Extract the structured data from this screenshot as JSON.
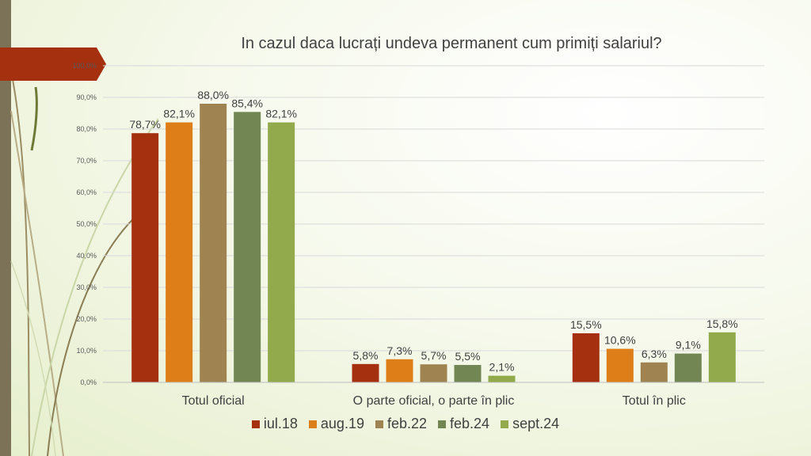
{
  "chart_data": {
    "type": "bar",
    "title": "In cazul daca lucrați undeva permanent cum primiți salariul?",
    "categories": [
      "Totul oficial",
      "O parte oficial, o parte în plic",
      "Totul în plic"
    ],
    "series": [
      {
        "name": "iul.18",
        "color": "#a5300f",
        "values": [
          78.7,
          5.8,
          15.5
        ],
        "labels": [
          "78,7%",
          "5,8%",
          "15,5%"
        ]
      },
      {
        "name": "aug.19",
        "color": "#de7e18",
        "values": [
          82.1,
          7.3,
          10.6
        ],
        "labels": [
          "82,1%",
          "7,3%",
          "10,6%"
        ]
      },
      {
        "name": "feb.22",
        "color": "#9f8351",
        "values": [
          88.0,
          5.7,
          6.3
        ],
        "labels": [
          "88,0%",
          "5,7%",
          "6,3%"
        ]
      },
      {
        "name": "feb.24",
        "color": "#728653",
        "values": [
          85.4,
          5.5,
          9.1
        ],
        "labels": [
          "85,4%",
          "5,5%",
          "9,1%"
        ]
      },
      {
        "name": "sept.24",
        "color": "#92aa4c",
        "values": [
          82.1,
          2.1,
          15.8
        ],
        "labels": [
          "82,1%",
          "2,1%",
          "15,8%"
        ]
      }
    ],
    "ylim": [
      0,
      100
    ],
    "yticks": [
      "0,0%",
      "10,0%",
      "20,0%",
      "30,0%",
      "40,0%",
      "50,0%",
      "60,0%",
      "70,0%",
      "80,0%",
      "90,0%",
      "100,0%"
    ],
    "grid": true,
    "legend_position": "bottom"
  }
}
